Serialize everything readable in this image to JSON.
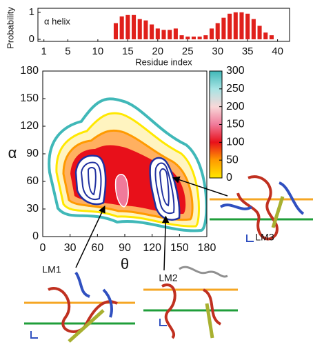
{
  "chart_data": [
    {
      "type": "bar",
      "ylabel": "Probability",
      "xlabel": "Residue index",
      "label": "α helix",
      "color": "#e0201b",
      "x": [
        1,
        2,
        3,
        4,
        5,
        6,
        7,
        8,
        9,
        10,
        11,
        12,
        13,
        14,
        15,
        16,
        17,
        18,
        19,
        20,
        21,
        22,
        23,
        24,
        25,
        26,
        27,
        28,
        29,
        30,
        31,
        32,
        33,
        34,
        35,
        36,
        37,
        38,
        39,
        40
      ],
      "values": [
        0,
        0,
        0,
        0,
        0,
        0,
        0,
        0,
        0,
        0,
        0,
        0,
        0.6,
        0.85,
        0.9,
        0.9,
        0.75,
        0.7,
        0.55,
        0.4,
        0.35,
        0.35,
        0.4,
        0.15,
        0.1,
        0.1,
        0.1,
        0.15,
        0.4,
        0.6,
        0.8,
        0.95,
        1,
        1,
        0.95,
        0.75,
        0.5,
        0.25,
        0.15,
        0
      ],
      "xlim": [
        0,
        42
      ],
      "xticks": [
        1,
        5,
        10,
        15,
        20,
        25,
        30,
        35,
        40
      ],
      "ylim": [
        0,
        1.15
      ],
      "yticks": [
        0,
        1
      ]
    },
    {
      "type": "contour",
      "xlabel": "θ",
      "ylabel": "α",
      "xlim": [
        0,
        180
      ],
      "xticks": [
        0,
        30,
        60,
        90,
        120,
        150,
        180
      ],
      "ylim": [
        0,
        180
      ],
      "yticks": [
        0,
        30,
        60,
        90,
        120,
        150,
        180
      ],
      "clim": [
        0,
        300
      ],
      "cticks": [
        0,
        50,
        100,
        150,
        200,
        250,
        300
      ],
      "colormap": [
        "#ffe800",
        "#ff9a00",
        "#e8101a",
        "#f07a9a",
        "#f8d8d8",
        "#a8e4e4",
        "#40b8b8"
      ],
      "annotations": [
        {
          "text": "LM1",
          "x": 68,
          "y": 33
        },
        {
          "text": "LM2",
          "x": 135,
          "y": 22
        },
        {
          "text": "LM3",
          "x": 143,
          "y": 64
        }
      ]
    }
  ]
}
